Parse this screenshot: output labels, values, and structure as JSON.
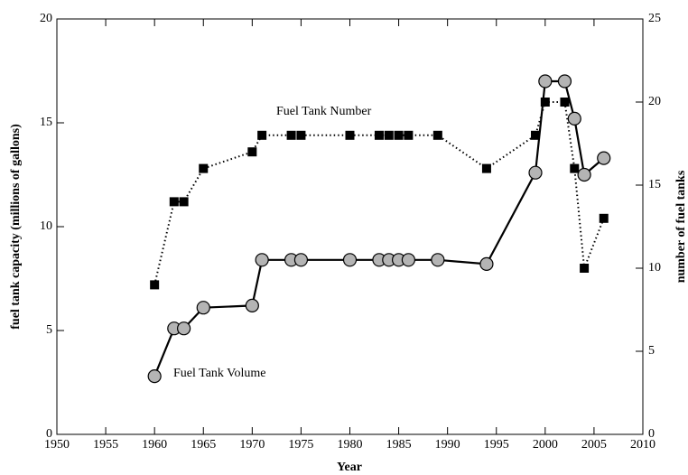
{
  "chart_data": {
    "type": "line",
    "x_label": "Year",
    "y_label": "fuel tank capacity (millions of gallons)",
    "y2_label": "number of fuel tanks",
    "x": [
      1960,
      1962,
      1963,
      1965,
      1970,
      1971,
      1974,
      1975,
      1980,
      1983,
      1984,
      1985,
      1986,
      1989,
      1994,
      1999,
      2000,
      2002,
      2003,
      2004,
      2006
    ],
    "series": [
      {
        "name": "Fuel Tank Volume",
        "color": "#000000",
        "marker": "circle",
        "marker_fill": "#b4b4b4",
        "line_style": "solid",
        "axis": "y",
        "values": [
          2.8,
          5.1,
          5.1,
          6.1,
          6.2,
          8.4,
          8.4,
          8.4,
          8.4,
          8.4,
          8.4,
          8.4,
          8.4,
          8.4,
          8.2,
          12.6,
          17.0,
          17.0,
          15.2,
          12.5,
          13.3
        ]
      },
      {
        "name": "Fuel Tank Number",
        "color": "#000000",
        "marker": "square",
        "marker_fill": "#000000",
        "line_style": "dotted",
        "axis": "y2",
        "values": [
          9,
          14,
          14,
          16,
          17,
          18,
          18,
          18,
          18,
          18,
          18,
          18,
          18,
          18,
          16,
          18,
          20,
          20,
          16,
          10,
          13
        ]
      }
    ],
    "xlim": [
      1950,
      2010
    ],
    "xticks": [
      1950,
      1955,
      1960,
      1965,
      1970,
      1975,
      1980,
      1985,
      1990,
      1995,
      2000,
      2005,
      2010
    ],
    "ylim": [
      0,
      20
    ],
    "yticks": [
      0,
      5,
      10,
      15,
      20
    ],
    "y2lim": [
      0,
      25
    ],
    "y2ticks": [
      0,
      5,
      10,
      15,
      20,
      25
    ]
  }
}
